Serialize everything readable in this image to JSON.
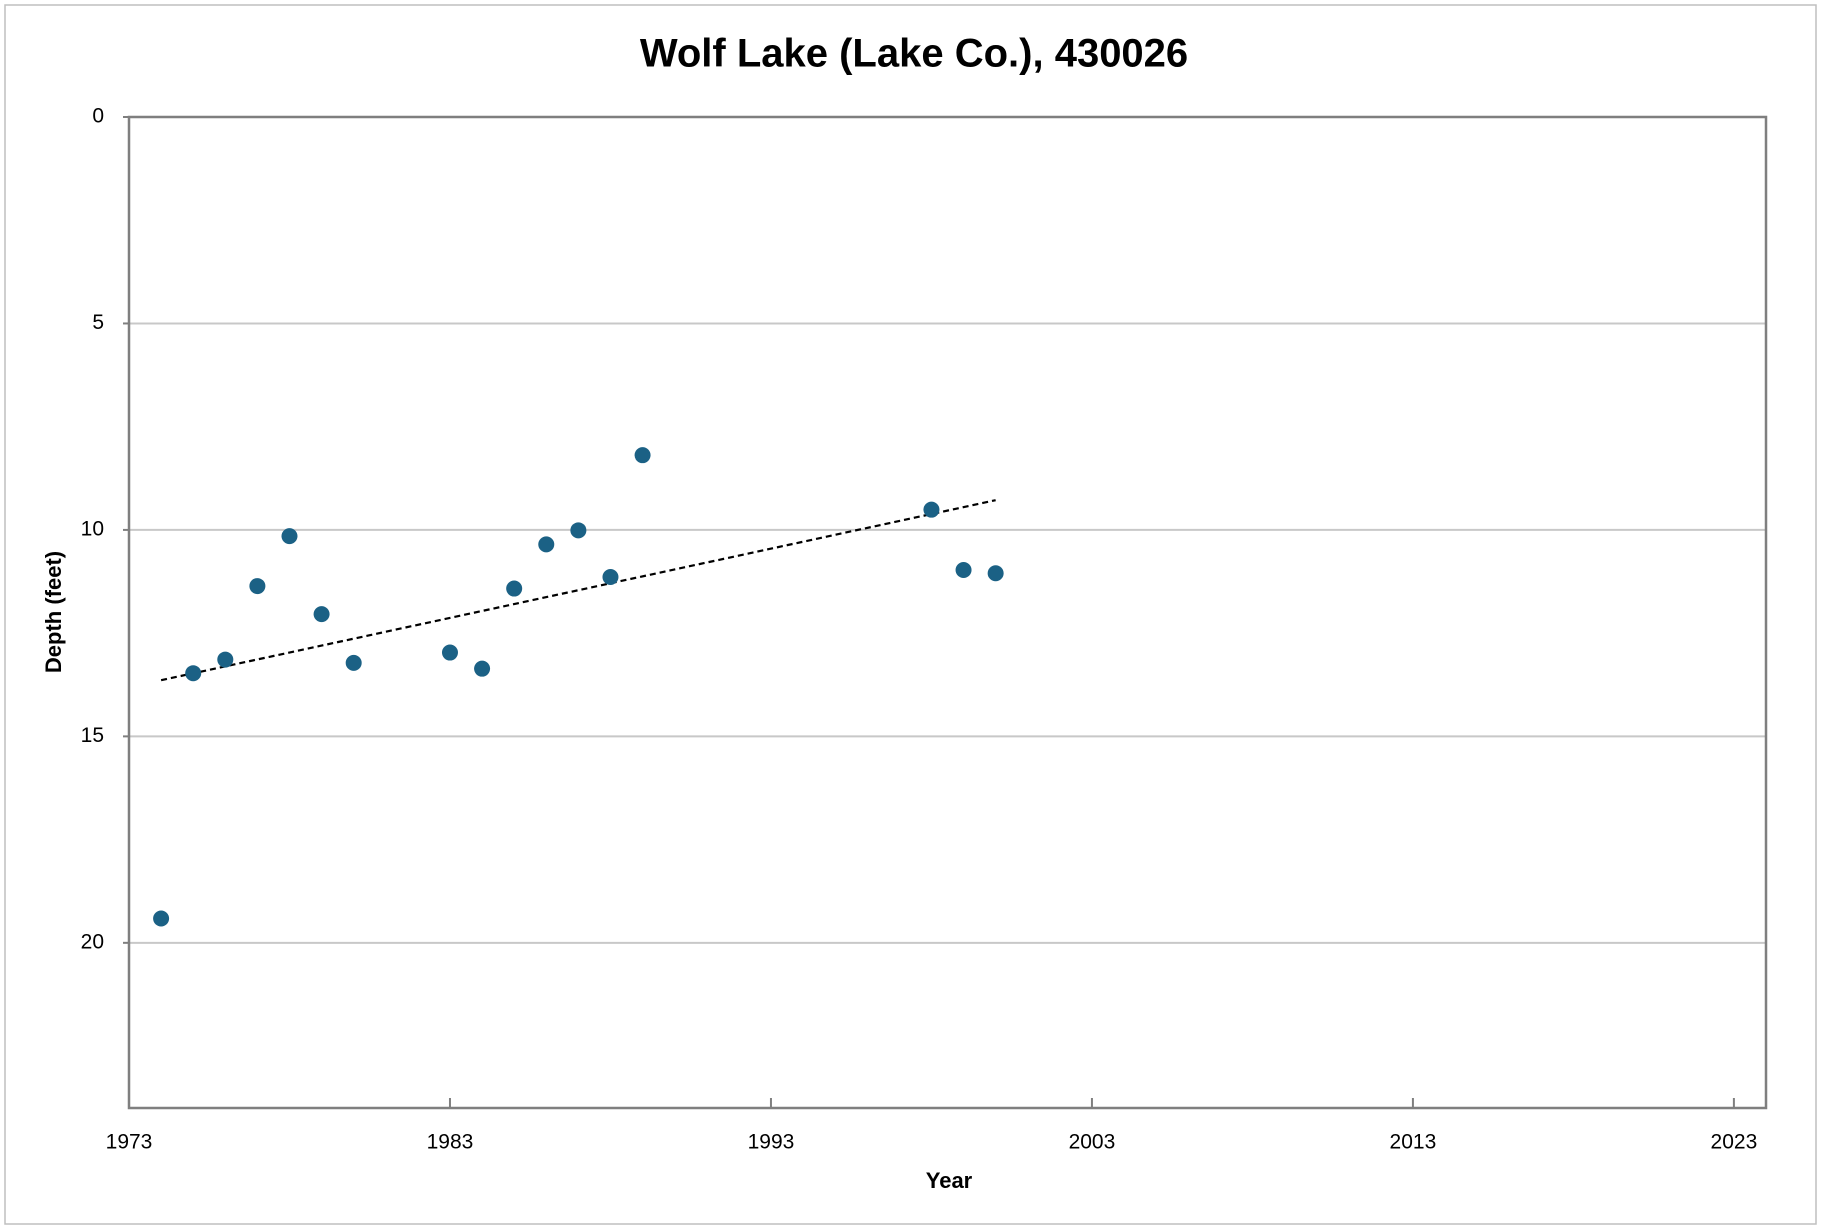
{
  "chart_data": {
    "type": "scatter",
    "title": "Wolf Lake (Lake Co.), 430026",
    "x_label": "Year",
    "y_label": "Depth (feet)",
    "x": [
      1974,
      1975,
      1976,
      1977,
      1978,
      1979,
      1980,
      1983,
      1984,
      1985,
      1986,
      1987,
      1988,
      1989,
      1998,
      1999,
      2000
    ],
    "values": [
      19.41,
      13.47,
      13.14,
      11.36,
      10.15,
      12.04,
      13.22,
      12.97,
      13.36,
      11.42,
      10.35,
      10.01,
      11.14,
      8.19,
      9.51,
      10.97,
      11.05
    ],
    "color": "#1b6185",
    "trendline": {
      "x": [
        1974,
        2000
      ],
      "values": [
        13.64,
        9.28
      ],
      "color": "#000000"
    },
    "xlim": [
      1973,
      2024
    ],
    "xticks": [
      1973,
      1983,
      1993,
      2003,
      2013,
      2023
    ],
    "ylim": [
      0,
      24
    ],
    "yticks": [
      0,
      5,
      10,
      15,
      20
    ],
    "y_inverted": true,
    "grid": true
  }
}
